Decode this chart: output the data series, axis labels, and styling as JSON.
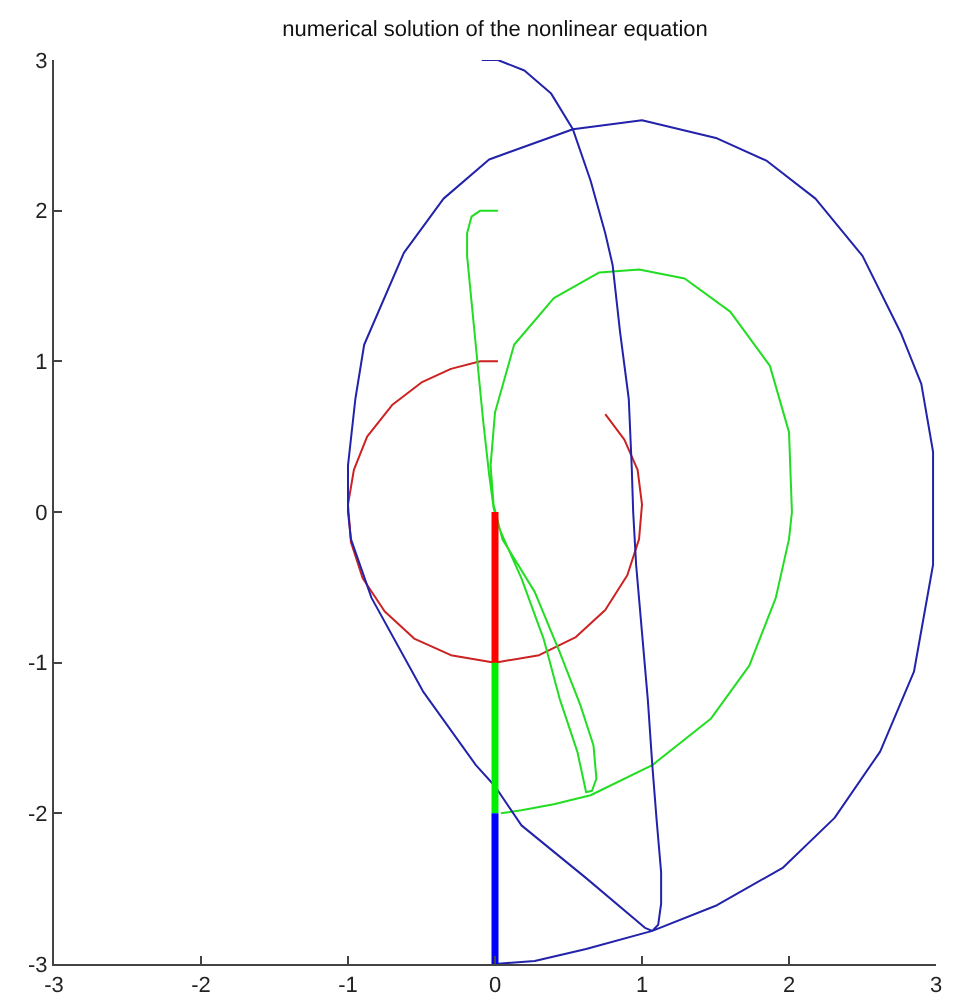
{
  "chart_data": {
    "type": "line",
    "title": "numerical solution of the nonlinear equation",
    "xlim": [
      -3,
      3
    ],
    "xticks": [
      -3,
      -2,
      -1,
      0,
      1,
      2,
      3
    ],
    "ylim": [
      -3,
      3
    ],
    "yticks": [
      -3,
      -2,
      -1,
      0,
      1,
      2,
      3
    ],
    "series": [
      {
        "color": "#cc2222",
        "x": [
          0.02,
          -0.1,
          -0.3,
          -0.5,
          -0.7,
          -0.87,
          -0.96,
          -1.0,
          -0.98,
          -0.9,
          -0.75,
          -0.55,
          -0.3,
          0,
          0.3,
          0.55,
          0.75,
          0.9,
          0.98,
          1.0,
          0.97,
          0.88,
          0.75
        ],
        "values": [
          1.0,
          1.0,
          0.95,
          0.86,
          0.71,
          0.5,
          0.28,
          0.05,
          -0.2,
          -0.44,
          -0.66,
          -0.84,
          -0.95,
          -1.0,
          -0.95,
          -0.83,
          -0.65,
          -0.42,
          -0.18,
          0.05,
          0.28,
          0.48,
          0.65
        ]
      },
      {
        "color": "#22dd22",
        "x": [
          0.02,
          -0.1,
          -0.16,
          -0.19,
          -0.19,
          -0.16,
          -0.12,
          -0.08,
          -0.04,
          -0.01,
          0.02,
          0.18,
          0.33,
          0.44,
          0.56,
          0.62,
          0.66,
          0.69,
          0.67,
          0.58,
          0.44,
          0.27,
          0.05,
          -0.01,
          -0.03,
          0.0,
          0.13,
          0.4,
          0.71,
          0.98,
          1.29,
          1.6,
          1.87,
          2.0,
          2.02,
          2.0,
          1.91,
          1.73,
          1.47,
          1.07,
          0.65,
          0.4,
          0.18,
          0.04
        ],
        "values": [
          2.0,
          2.0,
          1.96,
          1.85,
          1.7,
          1.4,
          1.0,
          0.6,
          0.25,
          0.03,
          -0.09,
          -0.44,
          -0.84,
          -1.24,
          -1.59,
          -1.86,
          -1.85,
          -1.77,
          -1.55,
          -1.28,
          -0.93,
          -0.53,
          -0.18,
          0.05,
          0.31,
          0.66,
          1.11,
          1.42,
          1.59,
          1.61,
          1.55,
          1.33,
          0.97,
          0.53,
          0.0,
          -0.18,
          -0.57,
          -1.02,
          -1.37,
          -1.68,
          -1.88,
          -1.94,
          -1.98,
          -2.0
        ]
      },
      {
        "color": "#2222aa",
        "x": [
          -0.09,
          0.02,
          0.2,
          0.38,
          0.53,
          0.65,
          0.75,
          0.8,
          0.85,
          0.91,
          0.93,
          0.94,
          0.96,
          1.0,
          1.04,
          1.07,
          1.1,
          1.13,
          1.13,
          1.11,
          1.07,
          1.51,
          1.96,
          2.31,
          2.62,
          2.85,
          2.98,
          2.98,
          2.9,
          2.76,
          2.5,
          2.18,
          1.85,
          1.51,
          1.0,
          0.53,
          -0.04,
          -0.35,
          -0.62,
          -0.89,
          -0.95,
          -1.0,
          -1.0,
          -0.98,
          -0.84,
          -0.49,
          -0.13,
          0.0,
          0.18,
          0.62,
          1.02,
          1.07,
          0.62,
          0.27,
          0.0
        ],
        "values": [
          3.0,
          3.0,
          2.93,
          2.78,
          2.54,
          2.2,
          1.85,
          1.64,
          1.2,
          0.75,
          0.3,
          0.0,
          -0.35,
          -0.8,
          -1.25,
          -1.68,
          -2.05,
          -2.39,
          -2.6,
          -2.74,
          -2.78,
          -2.61,
          -2.36,
          -2.03,
          -1.59,
          -1.06,
          -0.35,
          0.4,
          0.85,
          1.19,
          1.7,
          2.08,
          2.33,
          2.48,
          2.6,
          2.54,
          2.34,
          2.08,
          1.72,
          1.11,
          0.75,
          0.31,
          0.0,
          -0.18,
          -0.57,
          -1.19,
          -1.68,
          -1.82,
          -2.08,
          -2.43,
          -2.76,
          -2.78,
          -2.9,
          -2.98,
          -3.0
        ]
      },
      {
        "color": "#ff0000",
        "x": [
          0,
          0
        ],
        "values": [
          0,
          -1
        ]
      },
      {
        "color": "#00ee00",
        "x": [
          0,
          0
        ],
        "values": [
          -1,
          -2
        ]
      },
      {
        "color": "#0000ff",
        "x": [
          0,
          0
        ],
        "values": [
          -2,
          -3
        ]
      }
    ]
  }
}
